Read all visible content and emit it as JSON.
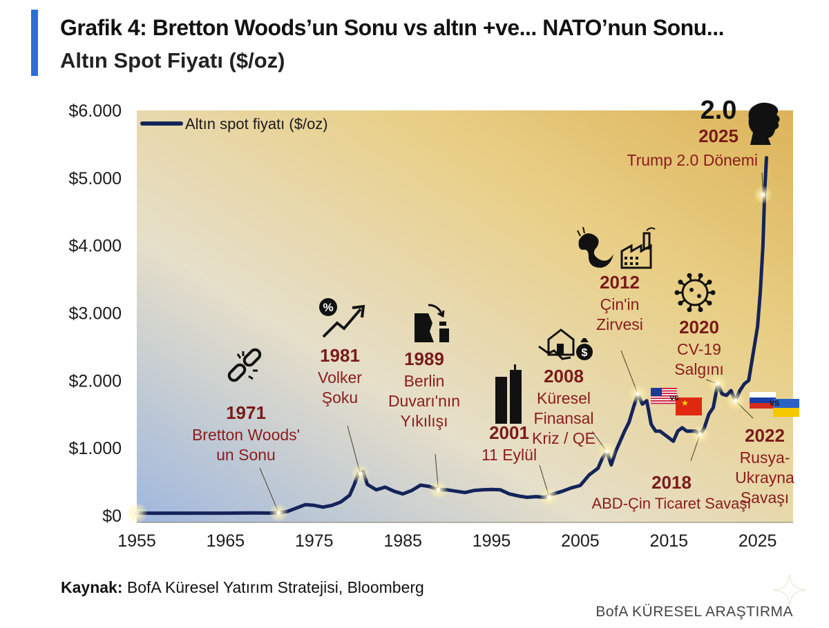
{
  "title": "Grafik 4: Bretton Woods’un Sonu vs altın +ve... NATO’nun Sonu...",
  "subtitle": "Altın Spot Fiyatı ($/oz)",
  "source_label": "Kaynak:",
  "source_text": "BofA Küresel Yatırım Stratejisi, Bloomberg",
  "footer": "BofA KÜRESEL ARAŞTIRMA",
  "colors": {
    "line": "#14245a",
    "accent": "#2f6ed8",
    "event_year": "#7a1a1a",
    "event_text": "#8a1c1c"
  },
  "chart_data": {
    "type": "line",
    "xlim": [
      1955,
      2029
    ],
    "ylim": [
      0,
      6000
    ],
    "x_ticks": [
      1955,
      1965,
      1975,
      1985,
      1995,
      2005,
      2015,
      2025
    ],
    "y_ticks": [
      {
        "value": 0,
        "label": "$0"
      },
      {
        "value": 1000,
        "label": "$1.000"
      },
      {
        "value": 2000,
        "label": "$2.000"
      },
      {
        "value": 3000,
        "label": "$3.000"
      },
      {
        "value": 4000,
        "label": "$4.000"
      },
      {
        "value": 5000,
        "label": "$5.000"
      },
      {
        "value": 6000,
        "label": "$6.000"
      }
    ],
    "series": [
      {
        "name": "Altın spot fiyatı ($/oz)",
        "x": [
          1955,
          1960,
          1965,
          1968,
          1970,
          1971,
          1972,
          1973,
          1974,
          1975,
          1976,
          1977,
          1978,
          1979,
          1979.5,
          1980,
          1980.5,
          1981,
          1982,
          1983,
          1984,
          1985,
          1986,
          1987,
          1988,
          1989,
          1990,
          1991,
          1992,
          1993,
          1994,
          1995,
          1996,
          1997,
          1998,
          1999,
          2000,
          2001,
          2002,
          2003,
          2004,
          2005,
          2006,
          2007,
          2007.5,
          2008,
          2008.5,
          2009,
          2009.5,
          2010,
          2010.5,
          2011,
          2011.5,
          2012,
          2012.5,
          2013,
          2013.5,
          2014,
          2015,
          2015.5,
          2016,
          2016.5,
          2017,
          2018,
          2018.5,
          2019,
          2019.5,
          2020,
          2020.5,
          2021,
          2021.5,
          2022,
          2022.5,
          2023,
          2023.5,
          2024,
          2024.5,
          2025,
          2025.3,
          2025.6,
          2025.8,
          2026
        ],
        "y": [
          35,
          35,
          35,
          39,
          36,
          40,
          60,
          110,
          160,
          150,
          125,
          150,
          200,
          300,
          450,
          620,
          650,
          460,
          380,
          420,
          360,
          320,
          370,
          450,
          430,
          380,
          380,
          360,
          340,
          370,
          380,
          385,
          380,
          320,
          290,
          270,
          280,
          270,
          320,
          360,
          410,
          445,
          600,
          700,
          850,
          950,
          750,
          950,
          1100,
          1250,
          1380,
          1600,
          1800,
          1650,
          1700,
          1350,
          1250,
          1250,
          1150,
          1100,
          1250,
          1300,
          1250,
          1250,
          1200,
          1300,
          1500,
          1600,
          1950,
          1800,
          1780,
          1850,
          1700,
          1850,
          1950,
          2000,
          2400,
          2800,
          3300,
          4000,
          4800,
          5300
        ]
      }
    ],
    "legend": {
      "label": "Altın spot fiyatı ($/oz)",
      "position": "top-left"
    },
    "annotations": [
      {
        "year_label": "1971",
        "text": [
          "Bretton Woods'",
          "un Sonu"
        ],
        "x": 1971,
        "y": 40,
        "icon": "broken-chain-icon"
      },
      {
        "year_label": "1981",
        "text": [
          "Volker",
          "Şoku"
        ],
        "x": 1980.2,
        "y": 620,
        "icon": "rising-rate-icon"
      },
      {
        "year_label": "1989",
        "text": [
          "Berlin",
          "Duvarı'nın",
          "Yıkılışı"
        ],
        "x": 1989,
        "y": 380,
        "icon": "falling-wall-icon"
      },
      {
        "year_label": "2001",
        "text": [
          "11 Eylül"
        ],
        "x": 2001.5,
        "y": 275,
        "icon": "twin-towers-icon"
      },
      {
        "year_label": "2008",
        "text": [
          "Küresel",
          "Finansal",
          "Kriz / QE"
        ],
        "x": 2008,
        "y": 950,
        "icon": "house-crash-icon"
      },
      {
        "year_label": "2012",
        "text": [
          "Çin'in",
          "Zirvesi"
        ],
        "x": 2011.5,
        "y": 1800,
        "icon": "dragon-factory-icon"
      },
      {
        "year_label": "2018",
        "text": [
          "ABD-Çin Ticaret Savaşı"
        ],
        "x": 2018.5,
        "y": 1200,
        "icon": "us-china-flags-icon"
      },
      {
        "year_label": "2020",
        "text": [
          "CV-19",
          "Salgını"
        ],
        "x": 2020.5,
        "y": 1950,
        "icon": "virus-icon"
      },
      {
        "year_label": "2022",
        "text": [
          "Rusya-",
          "Ukrayna",
          "Savaşı"
        ],
        "x": 2022.5,
        "y": 1700,
        "icon": "russia-ukraine-flags-icon"
      },
      {
        "year_label": "2025",
        "text": [
          "Trump 2.0 Dönemi"
        ],
        "x": 2025.6,
        "y": 4750,
        "icon": "trump-silhouette-icon",
        "badge": "2.0"
      }
    ]
  }
}
